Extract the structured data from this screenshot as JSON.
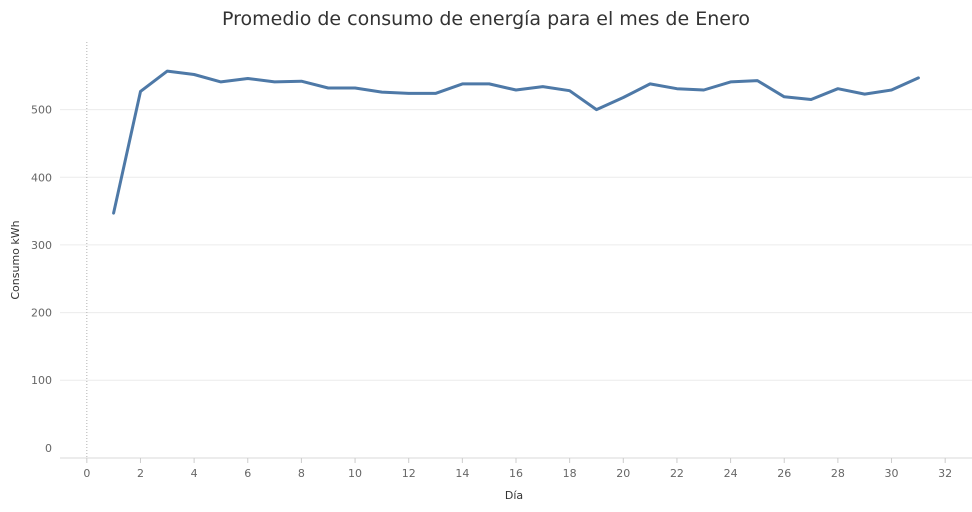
{
  "chart_data": {
    "type": "line",
    "title": "Promedio de consumo de energía para el mes de Enero",
    "xlabel": "Día",
    "ylabel": "Consumo kWh",
    "xlim": [
      -1,
      33
    ],
    "ylim": [
      -15,
      600
    ],
    "x_ticks": [
      0,
      2,
      4,
      6,
      8,
      10,
      12,
      14,
      16,
      18,
      20,
      22,
      24,
      26,
      28,
      30,
      32
    ],
    "y_ticks": [
      0,
      100,
      200,
      300,
      400,
      500
    ],
    "grid": true,
    "line_color": "#4e79a7",
    "series": [
      {
        "x": [
          1,
          2,
          3,
          4,
          5,
          6,
          7,
          8,
          9,
          10,
          11,
          12,
          13,
          14,
          15,
          16,
          17,
          18,
          19,
          20,
          21,
          22,
          23,
          24,
          25,
          26,
          27,
          28,
          29,
          30,
          31
        ],
        "values": [
          347,
          527,
          557,
          552,
          541,
          546,
          541,
          542,
          532,
          532,
          526,
          524,
          524,
          538,
          538,
          529,
          534,
          528,
          500,
          518,
          538,
          531,
          529,
          541,
          543,
          519,
          515,
          531,
          523,
          529,
          547
        ]
      }
    ]
  }
}
